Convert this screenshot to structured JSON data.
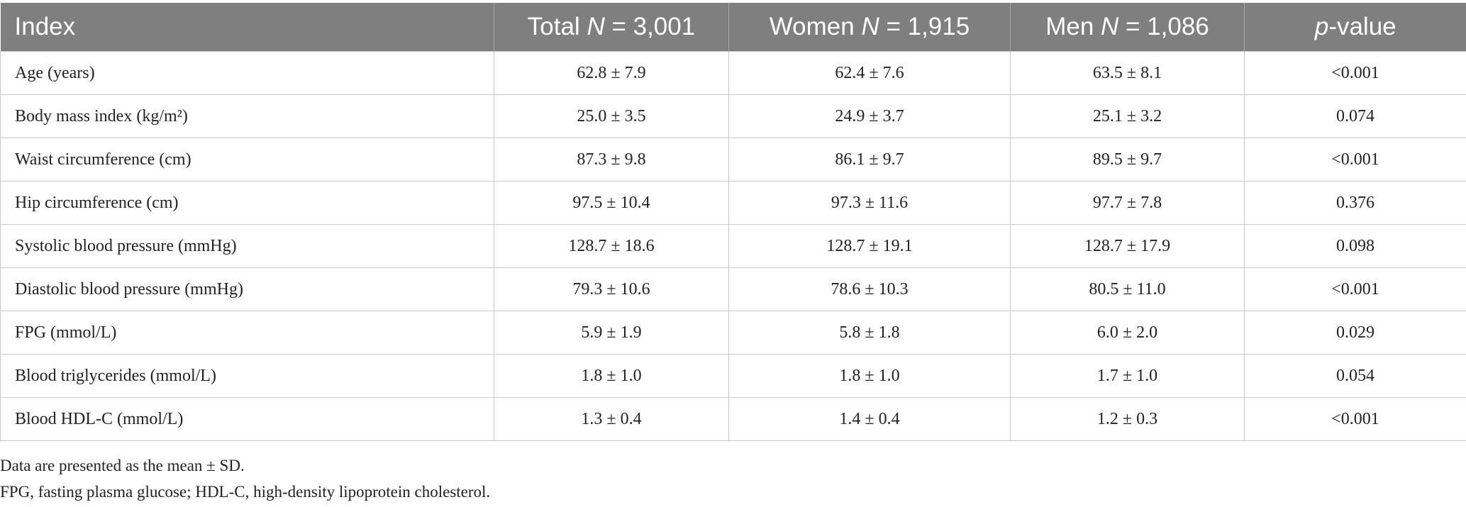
{
  "table": {
    "header": [
      [
        {
          "t": "Index"
        }
      ],
      [
        {
          "t": "Total "
        },
        {
          "t": "N",
          "i": true
        },
        {
          "t": " = 3,001"
        }
      ],
      [
        {
          "t": "Women "
        },
        {
          "t": "N",
          "i": true
        },
        {
          "t": " = 1,915"
        }
      ],
      [
        {
          "t": "Men "
        },
        {
          "t": "N",
          "i": true
        },
        {
          "t": " = 1,086"
        }
      ],
      [
        {
          "t": "p",
          "i": true
        },
        {
          "t": "-value"
        }
      ]
    ],
    "rows": [
      [
        "Age (years)",
        "62.8 ± 7.9",
        "62.4 ± 7.6",
        "63.5 ± 8.1",
        "<0.001"
      ],
      [
        "Body mass index (kg/m²)",
        "25.0 ± 3.5",
        "24.9 ± 3.7",
        "25.1 ± 3.2",
        "0.074"
      ],
      [
        "Waist circumference (cm)",
        "87.3 ± 9.8",
        "86.1 ± 9.7",
        "89.5 ± 9.7",
        "<0.001"
      ],
      [
        "Hip circumference (cm)",
        "97.5 ± 10.4",
        "97.3 ± 11.6",
        "97.7 ± 7.8",
        "0.376"
      ],
      [
        "Systolic blood pressure (mmHg)",
        "128.7 ± 18.6",
        "128.7 ± 19.1",
        "128.7 ± 17.9",
        "0.098"
      ],
      [
        "Diastolic blood pressure (mmHg)",
        "79.3 ± 10.6",
        "78.6 ± 10.3",
        "80.5 ± 11.0",
        "<0.001"
      ],
      [
        "FPG (mmol/L)",
        "5.9 ± 1.9",
        "5.8 ± 1.8",
        "6.0 ± 2.0",
        "0.029"
      ],
      [
        "Blood triglycerides (mmol/L)",
        "1.8 ± 1.0",
        "1.8 ± 1.0",
        "1.7 ± 1.0",
        "0.054"
      ],
      [
        "Blood HDL-C (mmol/L)",
        "1.3 ± 0.4",
        "1.4 ± 0.4",
        "1.2 ± 0.3",
        "<0.001"
      ]
    ],
    "notes": [
      "Data are presented as the mean ± SD.",
      "FPG, fasting plasma glucose; HDL-C, high-density lipoprotein cholesterol."
    ]
  }
}
